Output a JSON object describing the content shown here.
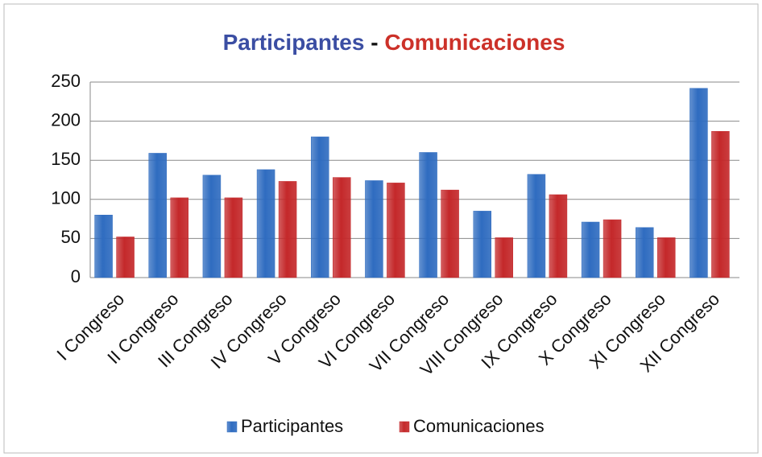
{
  "chart_data": {
    "type": "bar",
    "title": {
      "parts": [
        "Participantes",
        "-",
        "Comunicaciones"
      ],
      "colors": [
        "#3b4ea3",
        "#111111",
        "#cc3129"
      ]
    },
    "categories": [
      "I Congreso",
      "II Congreso",
      "III Congreso",
      "IV Congreso",
      "V Congreso",
      "VI Congreso",
      "VII Congreso",
      "VIII Congreso",
      "IX Congreso",
      "X Congreso",
      "XI Congreso",
      "XII Congreso"
    ],
    "series": [
      {
        "name": "Participantes",
        "color": "#2f6cc0",
        "values": [
          80,
          159,
          131,
          138,
          180,
          124,
          160,
          85,
          132,
          71,
          64,
          242
        ]
      },
      {
        "name": "Comunicaciones",
        "color": "#c4282a",
        "values": [
          52,
          102,
          102,
          123,
          128,
          121,
          112,
          51,
          106,
          74,
          51,
          187
        ]
      }
    ],
    "ylim": [
      0,
      250
    ],
    "yticks": [
      0,
      50,
      100,
      150,
      200,
      250
    ],
    "grid": true,
    "legend": "bottom"
  }
}
